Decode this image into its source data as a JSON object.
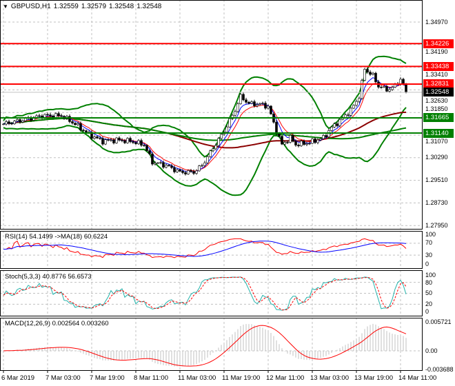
{
  "header": {
    "symbol": "GBPUSD,H1",
    "open": "1.32559",
    "high": "1.32579",
    "low": "1.32548",
    "close": "1.32548",
    "menu_icon": "triangle-down-icon"
  },
  "colors": {
    "resistance": "#ff0000",
    "support": "#008000",
    "bollinger": "#008000",
    "current_price_bg": "#000000",
    "rsi": "#ff0000",
    "rsi_ma": "#0000ff",
    "stoch_main": "#20b2aa",
    "stoch_signal": "#ff0000",
    "macd_hist": "#c0c0c0",
    "macd_signal": "#ff0000"
  },
  "chart_data": [
    {
      "type": "candlestick",
      "title": "GBPUSD,H1",
      "ylim": [
        1.2795,
        1.3497
      ],
      "y_ticks": [
        "1.34970",
        "1.34190",
        "1.33410",
        "1.32630",
        "1.31850",
        "1.31070",
        "1.30290",
        "1.29510",
        "1.28730",
        "1.27950"
      ],
      "x_ticks": [
        "6 Mar 2019",
        "7 Mar 03:00",
        "7 Mar 19:00",
        "8 Mar 11:00",
        "11 Mar 03:00",
        "11 Mar 19:00",
        "12 Mar 11:00",
        "13 Mar 03:00",
        "13 Mar 19:00",
        "14 Mar 11:00"
      ],
      "grid": true,
      "current_price": "1.32548",
      "levels": [
        {
          "value": "1.34226",
          "kind": "resistance"
        },
        {
          "value": "1.33438",
          "kind": "resistance"
        },
        {
          "value": "1.32831",
          "kind": "resistance"
        },
        {
          "value": "1.31665",
          "kind": "support"
        },
        {
          "value": "1.31140",
          "kind": "support"
        }
      ],
      "close_path": [
        {
          "time": "2019-03-06 11:00",
          "close": 1.3145
        },
        {
          "time": "2019-03-06 17:00",
          "close": 1.3157
        },
        {
          "time": "2019-03-07 01:00",
          "close": 1.3174
        },
        {
          "time": "2019-03-07 08:00",
          "close": 1.3174
        },
        {
          "time": "2019-03-07 13:00",
          "close": 1.3145
        },
        {
          "time": "2019-03-07 18:00",
          "close": 1.3109
        },
        {
          "time": "2019-03-07 23:00",
          "close": 1.3086
        },
        {
          "time": "2019-03-08 04:00",
          "close": 1.309
        },
        {
          "time": "2019-03-08 09:00",
          "close": 1.3086
        },
        {
          "time": "2019-03-08 14:00",
          "close": 1.3074
        },
        {
          "time": "2019-03-08 17:00",
          "close": 1.3014
        },
        {
          "time": "2019-03-08 22:00",
          "close": 1.3002
        },
        {
          "time": "2019-03-11 03:00",
          "close": 1.2979
        },
        {
          "time": "2019-03-11 08:00",
          "close": 1.2979
        },
        {
          "time": "2019-03-11 11:00",
          "close": 1.3002
        },
        {
          "time": "2019-03-11 15:00",
          "close": 1.3062
        },
        {
          "time": "2019-03-11 19:00",
          "close": 1.3121
        },
        {
          "time": "2019-03-11 23:00",
          "close": 1.3193
        },
        {
          "time": "2019-03-12 01:00",
          "close": 1.324
        },
        {
          "time": "2019-03-12 04:00",
          "close": 1.3216
        },
        {
          "time": "2019-03-12 09:00",
          "close": 1.3212
        },
        {
          "time": "2019-03-12 11:00",
          "close": 1.3205
        },
        {
          "time": "2019-03-12 14:00",
          "close": 1.3121
        },
        {
          "time": "2019-03-12 16:00",
          "close": 1.3074
        },
        {
          "time": "2019-03-12 19:00",
          "close": 1.3098
        },
        {
          "time": "2019-03-12 21:00",
          "close": 1.3074
        },
        {
          "time": "2019-03-13 02:00",
          "close": 1.3081
        },
        {
          "time": "2019-03-13 07:00",
          "close": 1.3098
        },
        {
          "time": "2019-03-13 10:00",
          "close": 1.3133
        },
        {
          "time": "2019-03-13 13:00",
          "close": 1.3157
        },
        {
          "time": "2019-03-13 17:00",
          "close": 1.3193
        },
        {
          "time": "2019-03-13 20:00",
          "close": 1.324
        },
        {
          "time": "2019-03-13 22:00",
          "close": 1.3335
        },
        {
          "time": "2019-03-14 01:00",
          "close": 1.3312
        },
        {
          "time": "2019-03-14 03:00",
          "close": 1.3276
        },
        {
          "time": "2019-03-14 06:00",
          "close": 1.3264
        },
        {
          "time": "2019-03-14 08:00",
          "close": 1.3269
        },
        {
          "time": "2019-03-14 11:00",
          "close": 1.33
        },
        {
          "time": "2019-03-14 13:00",
          "close": 1.32548
        }
      ]
    },
    {
      "type": "line",
      "title": "RSI(14) 54.1499  ->MA(18) 60.6224",
      "ylim": [
        0,
        100
      ],
      "y_ticks": [
        "100",
        "70",
        "30",
        "0"
      ]
    },
    {
      "type": "line",
      "title": "Stoch(5,3,3) 40.8776 56.6573",
      "ylim": [
        0,
        100
      ],
      "y_ticks": [
        "100",
        "80",
        "50",
        "20",
        "0"
      ]
    },
    {
      "type": "bar",
      "title": "MACD(12,26,9) 0.002564 0.003260",
      "ylim": [
        -0.003688,
        0.005721
      ],
      "y_ticks": [
        "0.005721",
        "0.00",
        "-0.003688"
      ]
    }
  ]
}
